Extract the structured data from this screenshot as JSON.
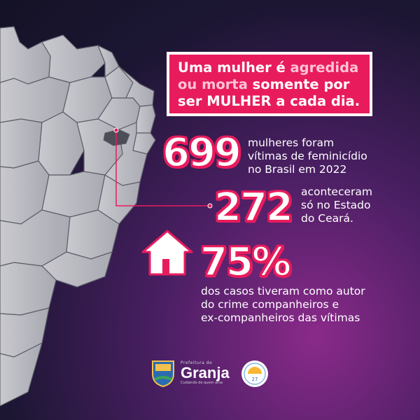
{
  "headline": {
    "line1_white": "Uma mulher é ",
    "line1_accent": "agredida",
    "line2_accent": "ou morta",
    "line2_white": " somente por",
    "line3": "ser MULHER a cada dia."
  },
  "stats": [
    {
      "number": "699",
      "text_lines": [
        "mulheres foram",
        "vítimas de feminicídio",
        "no Brasil em 2022"
      ]
    },
    {
      "number": "272",
      "text_lines": [
        "aconteceram",
        "só no Estado",
        "do Ceará."
      ]
    },
    {
      "number": "75%",
      "text_lines": [
        "dos casos tiveram como autor",
        "do crime companheiros e",
        "ex-companheiros das vítimas"
      ]
    }
  ],
  "footer": {
    "brand_small": "Prefeitura de",
    "brand_name": "Granja",
    "brand_tag": "Cuidando de quem ama",
    "seal_text": "27"
  },
  "colors": {
    "accent": "#e81c5d",
    "accent_light": "#ffc3d6",
    "background_dark": "#1c1633",
    "background_purple": "#8a2a8a",
    "map_gray": "#bdbdc4"
  },
  "icons": [
    "house-icon",
    "brazil-map-graphic",
    "granja-crest-icon",
    "seal-icon"
  ]
}
